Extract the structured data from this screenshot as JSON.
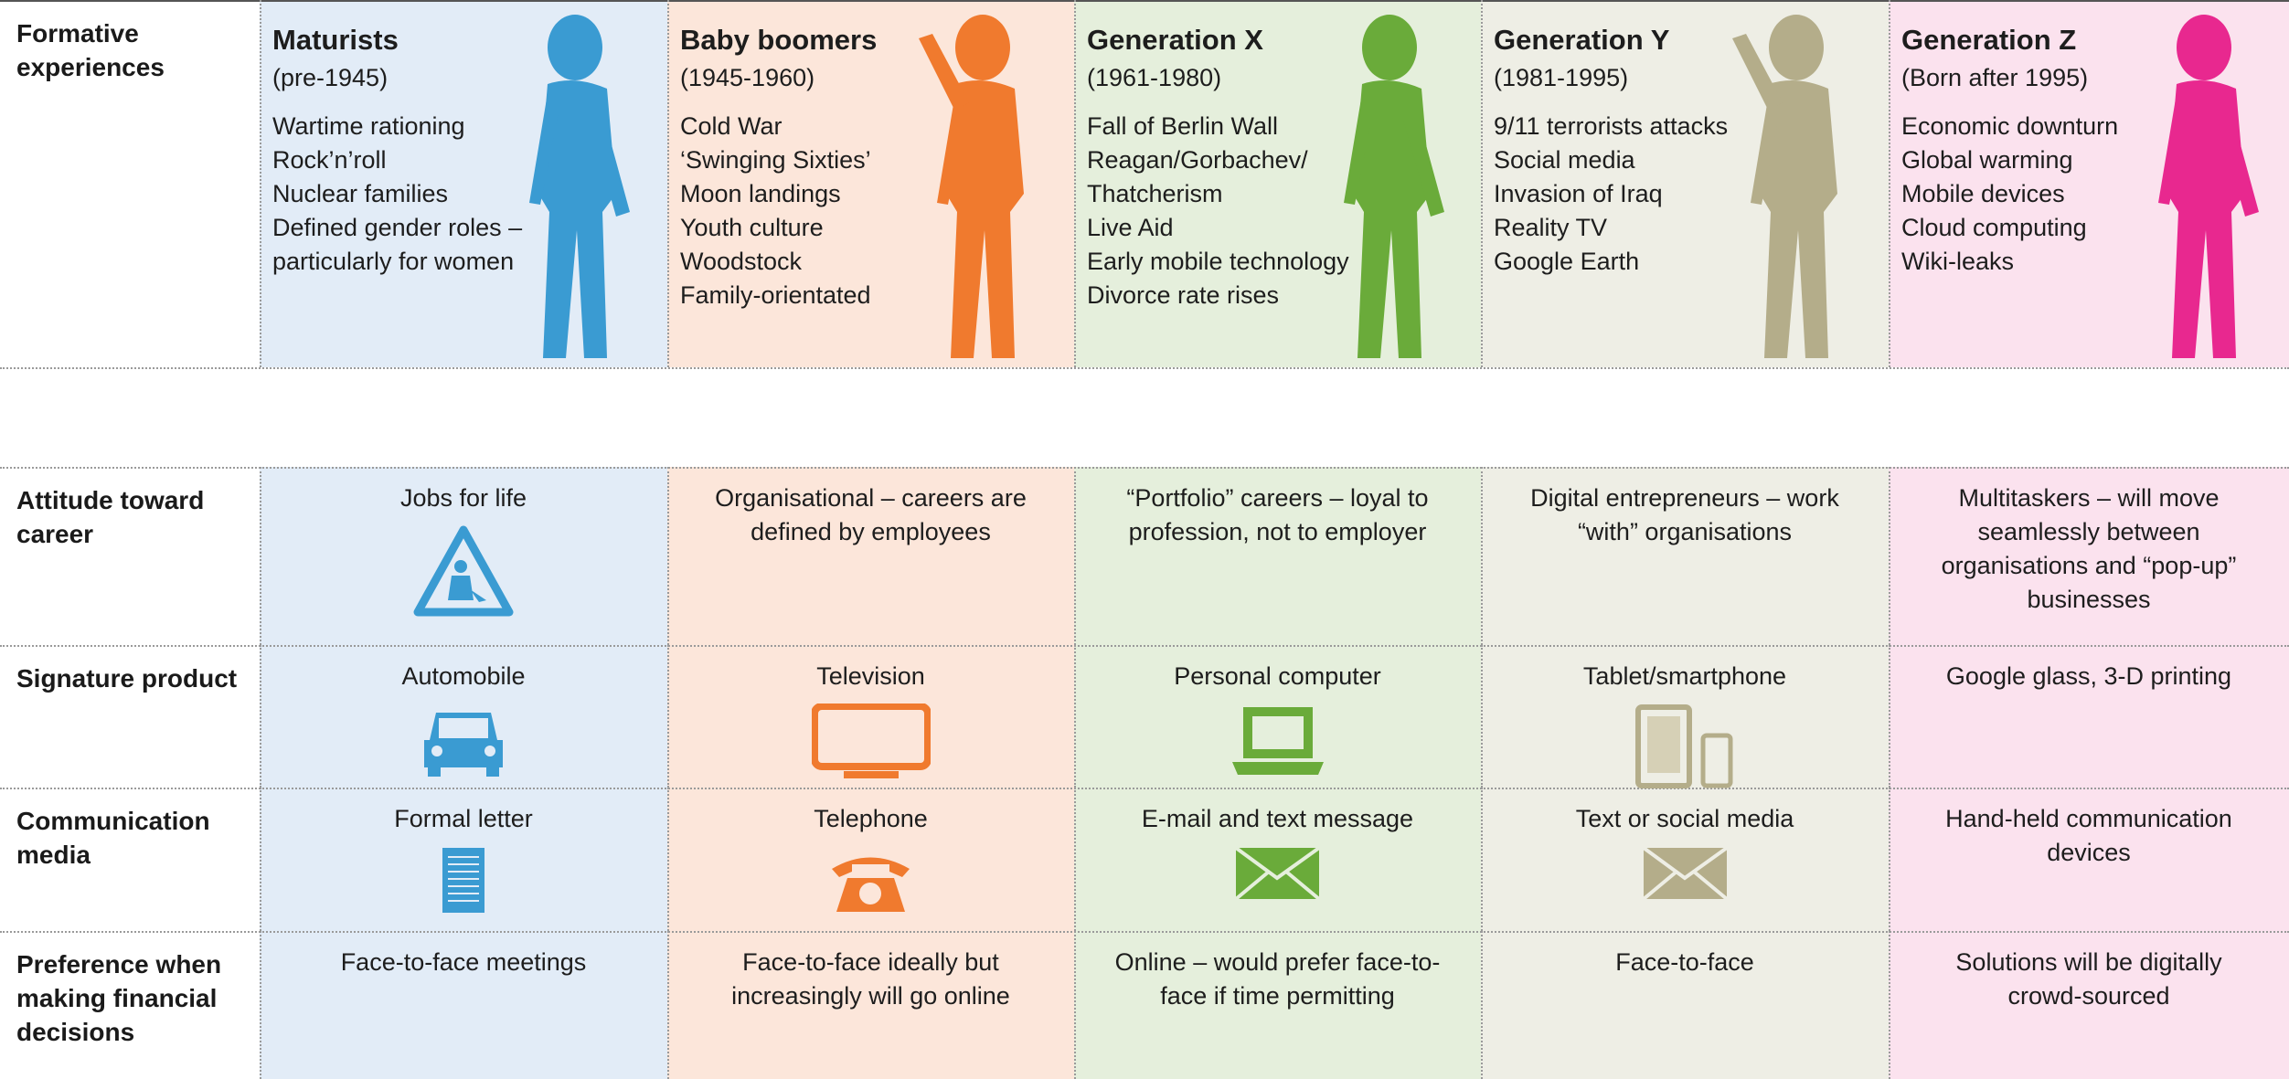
{
  "row_labels": [
    "Formative experiences",
    "Attitude toward career",
    "Signature product",
    "Communication media",
    "Preference when making financial decisions"
  ],
  "generations": [
    {
      "name": "Maturists",
      "years": "(pre-1945)",
      "formative": [
        "Wartime rationing",
        "Rock’n’roll",
        "Nuclear families",
        "Defined gender roles – particularly for women"
      ],
      "career": "Jobs for life",
      "product": "Automobile",
      "communication": "Formal letter",
      "preference": "Face-to-face meetings"
    },
    {
      "name": "Baby boomers",
      "years": "(1945-1960)",
      "formative": [
        "Cold War",
        "‘Swinging Sixties’",
        "Moon landings",
        "Youth culture",
        "Woodstock",
        "Family-orientated"
      ],
      "career": "Organisational – careers are defined by employees",
      "product": "Television",
      "communication": "Telephone",
      "preference": "Face-to-face ideally but increasingly will go online"
    },
    {
      "name": "Generation X",
      "years": "(1961-1980)",
      "formative": [
        "Fall of Berlin Wall",
        "Reagan/Gorbachev/ Thatcherism",
        "Live Aid",
        "Early mobile technology",
        "Divorce rate rises"
      ],
      "career": "“Portfolio” careers – loyal to profession, not to employer",
      "product": "Personal computer",
      "communication": "E-mail and text message",
      "preference": "Online – would prefer face-to-face if time permitting"
    },
    {
      "name": "Generation Y",
      "years": "(1981-1995)",
      "formative": [
        "9/11 terrorists attacks",
        "Social media",
        "Invasion of Iraq",
        "Reality TV",
        "Google Earth"
      ],
      "career": "Digital entrepreneurs – work “with” organisations",
      "product": "Tablet/smartphone",
      "communication": "Text or social media",
      "preference": "Face-to-face"
    },
    {
      "name": "Generation Z",
      "years": "(Born after 1995)",
      "formative": [
        "Economic downturn",
        "Global warming",
        "Mobile devices",
        "Cloud computing",
        "Wiki-leaks"
      ],
      "career": "Multitaskers – will move seamlessly between organisations and “pop-up” businesses",
      "product": "Google glass, 3-D printing",
      "communication": "Hand-held communication devices",
      "preference": "Solutions will be digitally crowd-sourced"
    }
  ]
}
